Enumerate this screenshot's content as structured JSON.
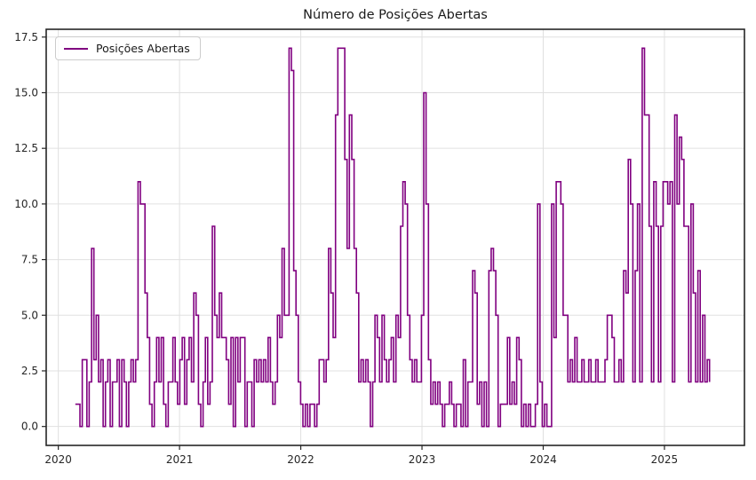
{
  "figure": {
    "title": "Número de Posições Abertas",
    "background": "#ffffff"
  },
  "legend": {
    "label": "Posições Abertas",
    "line_color": "#800080",
    "position": "upper-left"
  },
  "chart_data": {
    "type": "line",
    "style": "step-post",
    "title": "Número de Posições Abertas",
    "xlabel": "",
    "ylabel": "",
    "grid": true,
    "legend_position": "upper-left",
    "x_ticks": [
      2020,
      2021,
      2022,
      2023,
      2024,
      2025
    ],
    "y_ticks": [
      0.0,
      2.5,
      5.0,
      7.5,
      10.0,
      12.5,
      15.0,
      17.5
    ],
    "xlim": [
      2019.9,
      2025.66
    ],
    "ylim": [
      -0.85,
      17.85
    ],
    "x_start_year": 2020.14,
    "x_step_years": 0.019165,
    "colors": {
      "line": "#800080",
      "grid": "#e0e0e0",
      "spine": "#262626",
      "tick_text": "#262626"
    },
    "series": [
      {
        "name": "Posições Abertas",
        "color": "#800080",
        "values": [
          1,
          1,
          0,
          3,
          3,
          0,
          2,
          8,
          3,
          5,
          2,
          3,
          0,
          2,
          3,
          0,
          2,
          2,
          3,
          0,
          3,
          2,
          0,
          2,
          3,
          2,
          3,
          11,
          10,
          10,
          6,
          4,
          1,
          0,
          2,
          4,
          2,
          4,
          1,
          0,
          2,
          2,
          4,
          2,
          1,
          3,
          4,
          1,
          3,
          4,
          2,
          6,
          5,
          1,
          0,
          2,
          4,
          1,
          2,
          9,
          5,
          4,
          6,
          4,
          4,
          3,
          1,
          4,
          0,
          4,
          2,
          4,
          4,
          0,
          2,
          2,
          0,
          3,
          2,
          3,
          2,
          3,
          2,
          4,
          2,
          1,
          2,
          5,
          4,
          8,
          5,
          5,
          17,
          16,
          7,
          5,
          2,
          1,
          0,
          1,
          0,
          1,
          1,
          0,
          1,
          3,
          3,
          2,
          3,
          8,
          6,
          4,
          14,
          17,
          17,
          17,
          12,
          8,
          14,
          12,
          8,
          6,
          2,
          3,
          2,
          3,
          2,
          0,
          2,
          5,
          4,
          2,
          5,
          3,
          2,
          3,
          4,
          2,
          5,
          4,
          9,
          11,
          10,
          5,
          3,
          2,
          3,
          2,
          2,
          5,
          15,
          10,
          3,
          1,
          2,
          1,
          2,
          1,
          0,
          1,
          1,
          2,
          1,
          0,
          1,
          1,
          0,
          3,
          0,
          2,
          2,
          7,
          6,
          1,
          2,
          0,
          2,
          0,
          7,
          8,
          7,
          5,
          0,
          1,
          1,
          1,
          4,
          1,
          2,
          1,
          4,
          3,
          0,
          1,
          0,
          1,
          0,
          0,
          1,
          10,
          2,
          0,
          1,
          0,
          0,
          10,
          4,
          11,
          11,
          10,
          5,
          5,
          2,
          3,
          2,
          4,
          2,
          2,
          3,
          2,
          2,
          3,
          2,
          2,
          3,
          2,
          2,
          2,
          3,
          5,
          5,
          4,
          2,
          2,
          3,
          2,
          7,
          6,
          12,
          10,
          2,
          7,
          10,
          2,
          17,
          14,
          14,
          9,
          2,
          11,
          9,
          2,
          9,
          11,
          11,
          10,
          11,
          2,
          14,
          10,
          13,
          12,
          9,
          9,
          2,
          10,
          6,
          2,
          7,
          2,
          5,
          2,
          3,
          2
        ]
      }
    ]
  }
}
